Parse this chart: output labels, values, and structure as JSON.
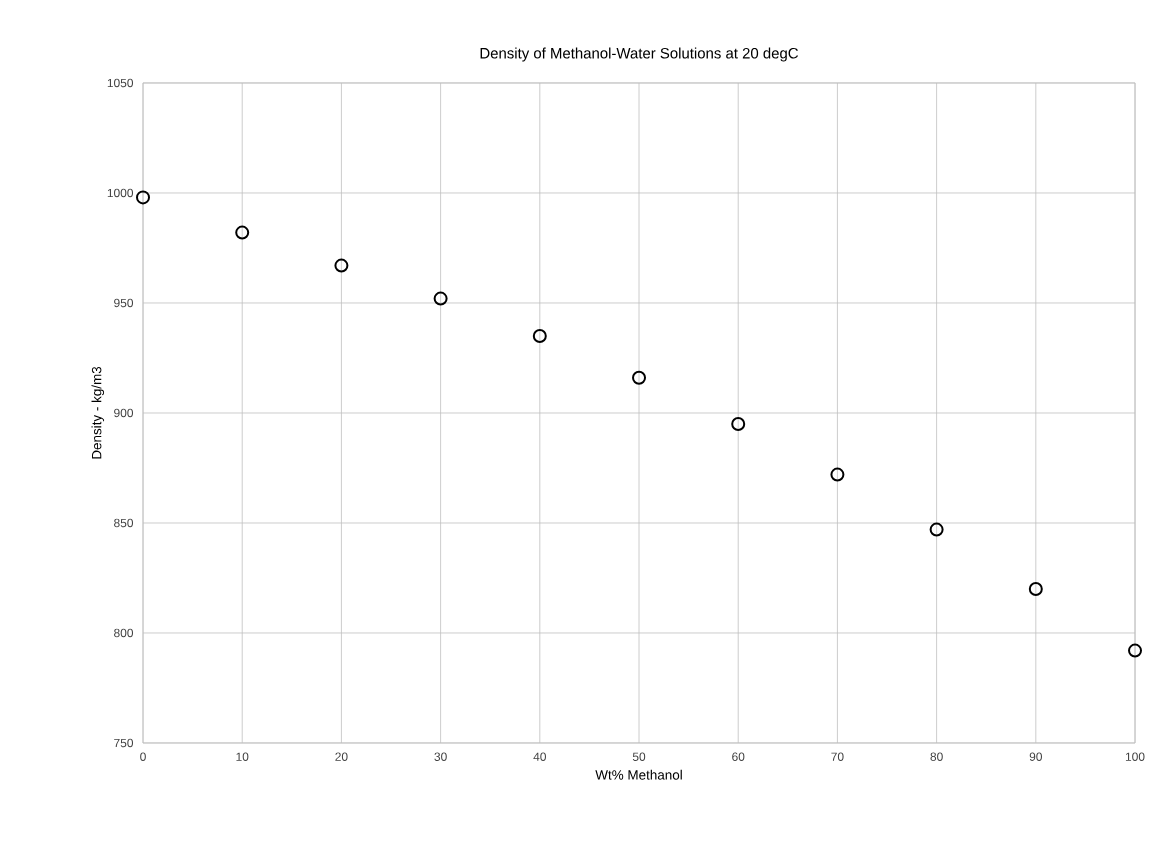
{
  "chart_data": {
    "type": "scatter",
    "title": "Density of Methanol-Water Solutions at 20 degC",
    "xlabel": "Wt% Methanol",
    "ylabel": "Density - kg/m3",
    "x": [
      0,
      10,
      20,
      30,
      40,
      50,
      60,
      70,
      80,
      90,
      100
    ],
    "series": [
      {
        "color": "#000000",
        "values": [
          998,
          982,
          967,
          952,
          935,
          916,
          895,
          872,
          847,
          820,
          792
        ]
      }
    ],
    "xlim": [
      0,
      100
    ],
    "ylim": [
      750,
      1050
    ],
    "xticks": [
      0,
      10,
      20,
      30,
      40,
      50,
      60,
      70,
      80,
      90,
      100
    ],
    "yticks": [
      750,
      800,
      850,
      900,
      950,
      1000,
      1050
    ],
    "grid": true,
    "marker": "circle"
  }
}
